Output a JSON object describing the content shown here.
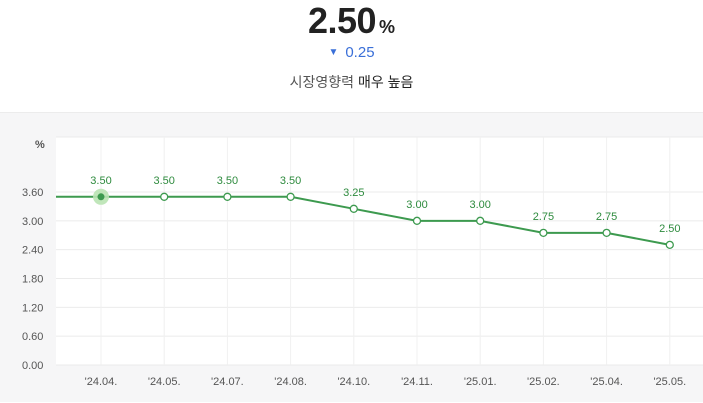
{
  "header": {
    "value": "2.50",
    "unit": "%",
    "change_icon": "down-triangle-icon",
    "change_value": "0.25",
    "impact_label": "시장영향력",
    "impact_level": "매우 높음",
    "change_color": "#3a6fd8"
  },
  "chart_data": {
    "type": "line",
    "ylabel": "%",
    "ylim": [
      0,
      3.6
    ],
    "yticks": [
      "3.60",
      "3.00",
      "2.40",
      "1.80",
      "1.20",
      "0.60",
      "0.00"
    ],
    "categories": [
      "'24.04.",
      "'24.05.",
      "'24.07.",
      "'24.08.",
      "'24.10.",
      "'24.11.",
      "'25.01.",
      "'25.02.",
      "'25.04.",
      "'25.05."
    ],
    "series": [
      {
        "values": [
          3.5,
          3.5,
          3.5,
          3.5,
          3.25,
          3.0,
          3.0,
          2.75,
          2.75,
          2.5
        ],
        "labels": [
          "3.50",
          "3.50",
          "3.50",
          "3.50",
          "3.25",
          "3.00",
          "3.00",
          "2.75",
          "2.75",
          "2.50"
        ],
        "color": "#3d9a4f"
      }
    ],
    "grid": true,
    "highlighted_index": 0
  }
}
